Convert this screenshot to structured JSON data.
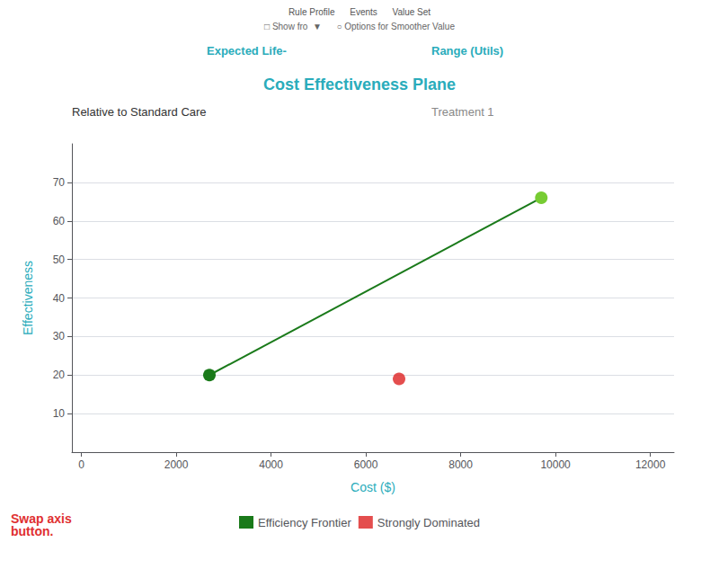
{
  "chart_data": {
    "type": "scatter",
    "title": "Cost Effectiveness Plane",
    "xlabel": "Cost ($)",
    "ylabel": "Effectiveness",
    "xlim": [
      -200,
      12500
    ],
    "ylim": [
      0,
      80
    ],
    "xticks": [
      0,
      2000,
      4000,
      6000,
      8000,
      10000,
      12000
    ],
    "yticks": [
      10,
      20,
      30,
      40,
      50,
      60,
      70
    ],
    "grid": "y",
    "legend": "bottom",
    "series": [
      {
        "name": "Efficiency Frontier",
        "type": "line",
        "color": "#1a7a1a",
        "x": [
          2700,
          9700
        ],
        "values": [
          20,
          66
        ],
        "colors": [
          "#1a7a1a",
          "#77cc33"
        ]
      },
      {
        "name": "Strongly Dominated",
        "type": "scatter",
        "color": "#dd2222",
        "x": [
          6700
        ],
        "values": [
          19
        ]
      }
    ],
    "annotations": [
      "Rule Profile      Events      Value Set",
      "□ Show fro  ▼      ○ Options for Smoother Value",
      "Expected Life-",
      "Range (Utils)",
      "Relative to Standard Care",
      "Treatment 1",
      "Swap axis\nbutton."
    ]
  }
}
